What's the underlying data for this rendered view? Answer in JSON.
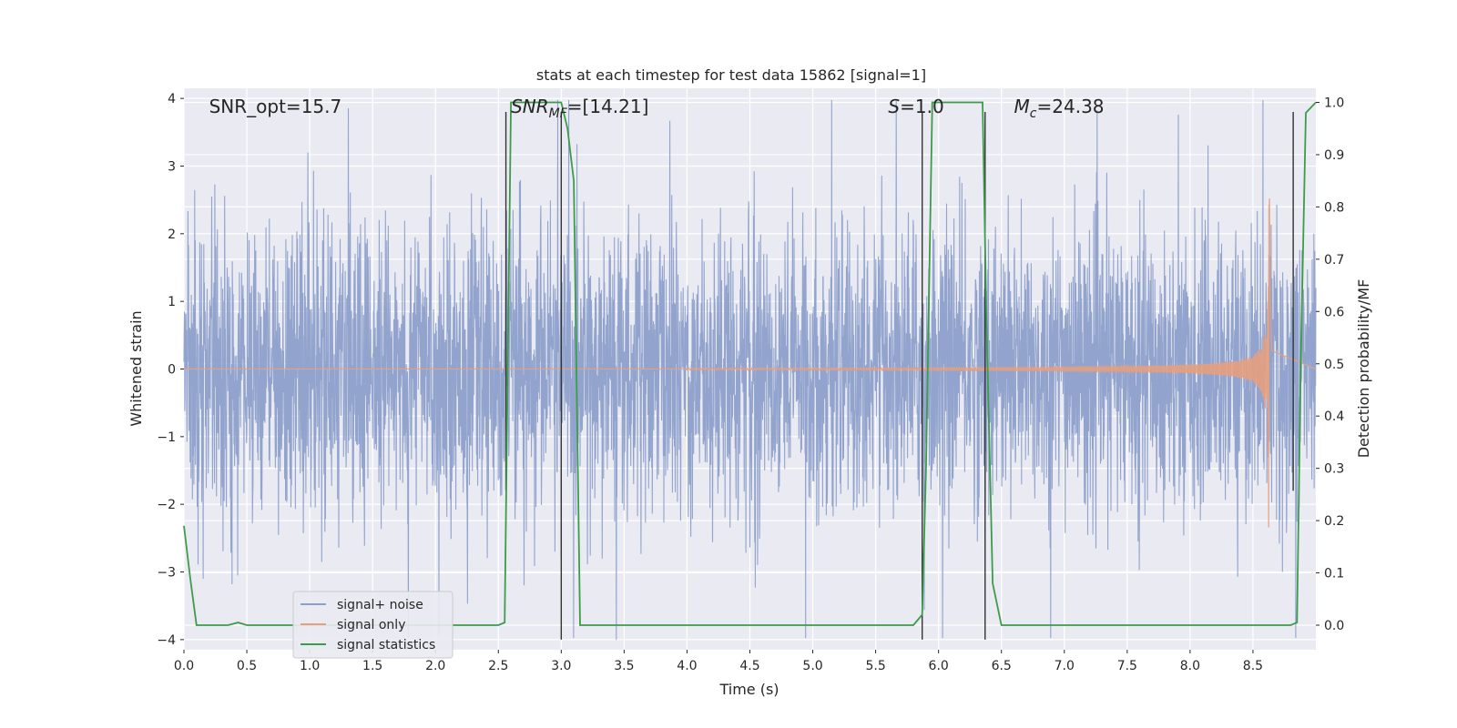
{
  "chart_data": {
    "type": "line",
    "title": "stats at each timestep for test data 15862 [signal=1]",
    "xlabel": "Time (s)",
    "ylabel": "Whitened strain",
    "y2label": "Detection probability/MF",
    "xlim": [
      0,
      9
    ],
    "ylim": [
      -4.15,
      4.15
    ],
    "y2lim": [
      -0.047,
      1.027
    ],
    "xticks": [
      "0.0",
      "0.5",
      "1.0",
      "1.5",
      "2.0",
      "2.5",
      "3.0",
      "3.5",
      "4.0",
      "4.5",
      "5.0",
      "5.5",
      "6.0",
      "6.5",
      "7.0",
      "7.5",
      "8.0",
      "8.5"
    ],
    "xtick_values": [
      0,
      0.5,
      1,
      1.5,
      2,
      2.5,
      3,
      3.5,
      4,
      4.5,
      5,
      5.5,
      6,
      6.5,
      7,
      7.5,
      8,
      8.5
    ],
    "yticks": [
      "−4",
      "−3",
      "−2",
      "−1",
      "0",
      "1",
      "2",
      "3",
      "4"
    ],
    "ytick_values": [
      -4,
      -3,
      -2,
      -1,
      0,
      1,
      2,
      3,
      4
    ],
    "y2ticks": [
      "0.0",
      "0.1",
      "0.2",
      "0.3",
      "0.4",
      "0.5",
      "0.6",
      "0.7",
      "0.8",
      "0.9",
      "1.0"
    ],
    "y2tick_values": [
      0,
      0.1,
      0.2,
      0.3,
      0.4,
      0.5,
      0.6,
      0.7,
      0.8,
      0.9,
      1.0
    ],
    "grid": true,
    "legend_position": "lower-left",
    "annotations": [
      {
        "text": "SNR_opt=15.7",
        "x": 0.2
      },
      {
        "text": "SNR_MF=[14.21]",
        "x": 2.6
      },
      {
        "text": "S=1.0",
        "x": 5.6
      },
      {
        "text": "M_c=24.38",
        "x": 6.6
      }
    ],
    "series": [
      {
        "name": "signal+ noise",
        "color": "#8da0cb",
        "kind": "noise",
        "x_range": [
          0,
          9
        ],
        "amplitude_envelope": 4.1
      },
      {
        "name": "signal only",
        "color": "#e6a07f",
        "kind": "chirp",
        "x_range": [
          4.0,
          8.65
        ],
        "peak_time": 8.63,
        "peak_amplitude": 3.5
      },
      {
        "name": "signal statistics",
        "color": "#3d9b4a",
        "axis": "right",
        "x": [
          0.0,
          0.05,
          0.1,
          0.15,
          0.25,
          0.35,
          0.43,
          0.5,
          0.6,
          2.5,
          2.55,
          2.6,
          2.65,
          3.0,
          3.05,
          3.1,
          3.15,
          3.2,
          5.8,
          5.87,
          5.9,
          5.95,
          6.0,
          6.35,
          6.38,
          6.43,
          6.5,
          8.8,
          8.85,
          8.88,
          8.92,
          9.0
        ],
        "y": [
          0.19,
          0.09,
          0.0,
          0.0,
          0.0,
          0.0,
          0.005,
          0.0,
          0.0,
          0.0,
          0.005,
          1.0,
          1.0,
          1.0,
          0.95,
          0.85,
          0.0,
          0.0,
          0.0,
          0.02,
          0.3,
          1.0,
          1.0,
          1.0,
          0.6,
          0.08,
          0.0,
          0.0,
          0.005,
          0.5,
          0.98,
          1.0
        ]
      },
      {
        "name": "",
        "color": "#333333",
        "kind": "vlines",
        "x": [
          2.56,
          3.0,
          5.87,
          6.37,
          8.82
        ],
        "ymax": [
          3.8,
          3.8,
          3.8,
          3.8,
          3.8
        ],
        "ymin": [
          -1.8,
          -4.0,
          -4.0,
          -4.0,
          -1.8
        ]
      }
    ]
  }
}
